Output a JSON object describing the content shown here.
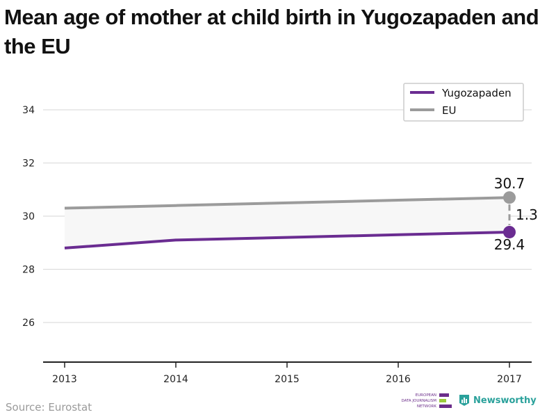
{
  "title": "Mean age of mother at child birth in Yugozapaden and the EU",
  "source": "Source: Eurostat",
  "logos": {
    "ejn_lines": [
      "EUROPEAN",
      "DATA JOURNALISM",
      "NETWORK"
    ],
    "newsworthy": "Newsworthy"
  },
  "colors": {
    "yugozapaden": "#6a2c91",
    "eu": "#9b9b9b",
    "gap_fill": "#f7f7f7",
    "grid": "#dddddd",
    "axis": "#222222"
  },
  "chart_data": {
    "type": "line",
    "x": [
      2013,
      2014,
      2015,
      2016,
      2017
    ],
    "categories": [
      "2013",
      "2014",
      "2015",
      "2016",
      "2017"
    ],
    "series": [
      {
        "name": "Yugozapaden",
        "values": [
          28.8,
          29.1,
          29.2,
          29.3,
          29.4
        ]
      },
      {
        "name": "EU",
        "values": [
          30.3,
          30.4,
          30.5,
          30.6,
          30.7
        ]
      }
    ],
    "ylim": [
      24.5,
      35.5
    ],
    "yticks": [
      26,
      28,
      30,
      32,
      34
    ],
    "ytick_labels": [
      "26",
      "28",
      "30",
      "32",
      "34"
    ],
    "annotations": {
      "eu_last": "30.7",
      "yugozapaden_last": "29.4",
      "difference": "1.3"
    },
    "legend_position": "top-right",
    "grid": true,
    "xlabel": "",
    "ylabel": ""
  }
}
